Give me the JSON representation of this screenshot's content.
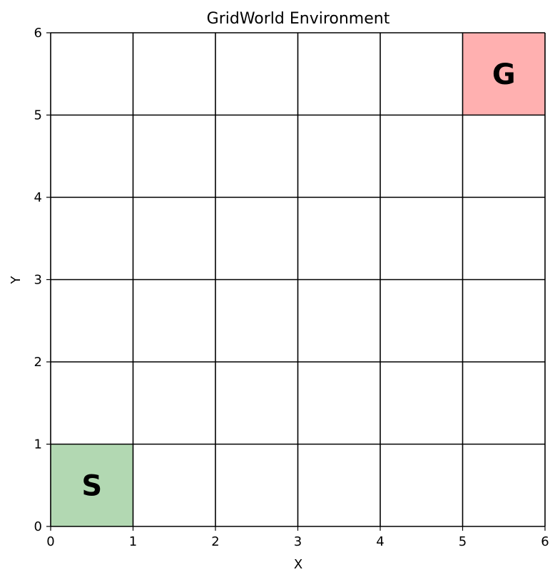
{
  "chart_data": {
    "type": "heatmap",
    "title": "GridWorld Environment",
    "xlabel": "X",
    "ylabel": "Y",
    "xlim": [
      0,
      6
    ],
    "ylim": [
      0,
      6
    ],
    "grid_size": [
      6,
      6
    ],
    "grid": true,
    "xticks": [
      "0",
      "1",
      "2",
      "3",
      "4",
      "5",
      "6"
    ],
    "yticks": [
      "0",
      "1",
      "2",
      "3",
      "4",
      "5",
      "6"
    ],
    "cells": [
      {
        "name": "start",
        "label": "S",
        "x": 0,
        "y": 0,
        "color": "#b2d8b2"
      },
      {
        "name": "goal",
        "label": "G",
        "x": 5,
        "y": 5,
        "color": "#ffb0b0"
      }
    ]
  }
}
